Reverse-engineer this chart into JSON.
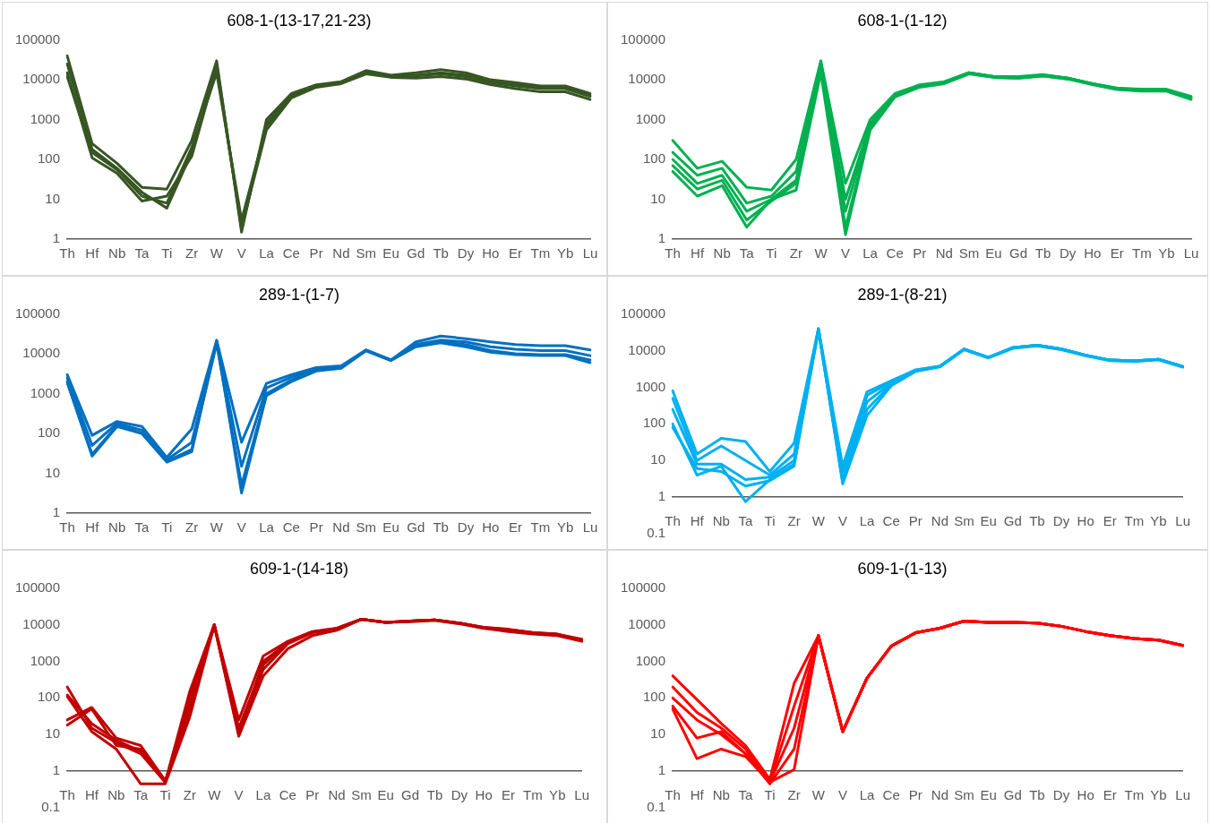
{
  "chart_data": [
    {
      "type": "line",
      "title": "608-1-(13-17,21-23)",
      "log": "y",
      "grid": false,
      "legend": false,
      "marker": "none",
      "line_style": "solid",
      "ylim": [
        1,
        100000
      ],
      "yticks": [
        1,
        10,
        100,
        1000,
        10000,
        100000
      ],
      "categories": [
        "Th",
        "Hf",
        "Nb",
        "Ta",
        "Ti",
        "Zr",
        "W",
        "V",
        "La",
        "Ce",
        "Pr",
        "Nd",
        "Sm",
        "Eu",
        "Gd",
        "Tb",
        "Dy",
        "Ho",
        "Er",
        "Tm",
        "Yb",
        "Lu"
      ],
      "series": [
        {
          "color": "#375623",
          "values": [
            40000,
            250,
            80,
            20,
            18,
            300,
            30000,
            1.5,
            1000,
            4500,
            7500,
            9000,
            17000,
            13000,
            15000,
            18000,
            15000,
            10000,
            8500,
            7000,
            7000,
            4500
          ]
        },
        {
          "color": "#375623",
          "values": [
            15000,
            110,
            45,
            9,
            12,
            120,
            20000,
            2,
            550,
            3500,
            6500,
            8000,
            14000,
            11500,
            11000,
            12000,
            10500,
            7500,
            6000,
            5000,
            5000,
            3200
          ]
        },
        {
          "color": "#375623",
          "values": [
            25000,
            180,
            60,
            15,
            6,
            150,
            25000,
            1.8,
            800,
            4000,
            7000,
            8500,
            15000,
            12000,
            12500,
            14000,
            12000,
            8500,
            7000,
            6000,
            6000,
            3800
          ]
        },
        {
          "color": "#375623",
          "values": [
            12000,
            150,
            55,
            12,
            8,
            200,
            15000,
            3,
            700,
            3800,
            7000,
            8500,
            16000,
            12500,
            13000,
            15000,
            13000,
            9000,
            7500,
            6500,
            6500,
            4000
          ]
        }
      ]
    },
    {
      "type": "line",
      "title": "608-1-(1-12)",
      "log": "y",
      "grid": false,
      "legend": false,
      "marker": "none",
      "line_style": "solid",
      "ylim": [
        1,
        100000
      ],
      "yticks": [
        1,
        10,
        100,
        1000,
        10000,
        100000
      ],
      "categories": [
        "Th",
        "Hf",
        "Nb",
        "Ta",
        "Ti",
        "Zr",
        "W",
        "V",
        "La",
        "Ce",
        "Pr",
        "Nd",
        "Sm",
        "Eu",
        "Gd",
        "Tb",
        "Dy",
        "Ho",
        "Er",
        "Tm",
        "Yb",
        "Lu"
      ],
      "series": [
        {
          "color": "#00b050",
          "values": [
            300,
            60,
            90,
            20,
            17,
            100,
            30000,
            25,
            1000,
            4500,
            7500,
            9000,
            15000,
            12000,
            12000,
            13500,
            11000,
            8000,
            6200,
            5800,
            5800,
            3800
          ]
        },
        {
          "color": "#00b050",
          "values": [
            150,
            40,
            60,
            8,
            12,
            50,
            25000,
            10,
            800,
            4200,
            7200,
            8700,
            15000,
            12000,
            11500,
            13000,
            11000,
            8000,
            6000,
            5500,
            5500,
            3600
          ]
        },
        {
          "color": "#00b050",
          "values": [
            100,
            25,
            40,
            5,
            10,
            30,
            20000,
            5,
            700,
            4000,
            7000,
            8500,
            15000,
            12000,
            11500,
            13000,
            11000,
            8000,
            6000,
            5500,
            5500,
            3500
          ]
        },
        {
          "color": "#00b050",
          "values": [
            70,
            18,
            30,
            3,
            9,
            25,
            28000,
            2,
            600,
            3900,
            6800,
            8300,
            14500,
            11500,
            11000,
            12500,
            10500,
            7700,
            5800,
            5300,
            5300,
            3300
          ]
        },
        {
          "color": "#00b050",
          "values": [
            50,
            12,
            22,
            2,
            10,
            17,
            15000,
            1.3,
            550,
            3700,
            6500,
            8000,
            14000,
            11500,
            11000,
            12500,
            10500,
            7500,
            5700,
            5200,
            5200,
            3200
          ]
        }
      ]
    },
    {
      "type": "line",
      "title": "289-1-(1-7)",
      "log": "y",
      "grid": false,
      "legend": false,
      "marker": "none",
      "line_style": "solid",
      "ylim": [
        1,
        100000
      ],
      "yticks": [
        1,
        10,
        100,
        1000,
        10000,
        100000
      ],
      "categories": [
        "Th",
        "Hf",
        "Nb",
        "Ta",
        "Ti",
        "Zr",
        "W",
        "V",
        "La",
        "Ce",
        "Pr",
        "Nd",
        "Sm",
        "Eu",
        "Gd",
        "Tb",
        "Dy",
        "Ho",
        "Er",
        "Tm",
        "Yb",
        "Lu"
      ],
      "series": [
        {
          "color": "#0070c0",
          "values": [
            3000,
            90,
            200,
            150,
            25,
            130,
            22000,
            60,
            1800,
            3000,
            4500,
            5000,
            12500,
            7000,
            20000,
            28000,
            24000,
            20000,
            17000,
            16000,
            16000,
            12500
          ]
        },
        {
          "color": "#0070c0",
          "values": [
            2500,
            50,
            180,
            120,
            22,
            60,
            20000,
            15,
            1400,
            2600,
            4200,
            4800,
            12500,
            7000,
            17000,
            22000,
            20000,
            15000,
            13000,
            12000,
            12000,
            9000
          ]
        },
        {
          "color": "#0070c0",
          "values": [
            2000,
            30,
            160,
            100,
            20,
            40,
            18000,
            5,
            1000,
            2200,
            4000,
            4500,
            12000,
            6800,
            16000,
            20000,
            17000,
            12000,
            10000,
            9500,
            9500,
            7000
          ]
        },
        {
          "color": "#0070c0",
          "values": [
            1900,
            27,
            150,
            100,
            19,
            35,
            21000,
            3.2,
            900,
            2000,
            3700,
            4300,
            12000,
            6800,
            15000,
            19000,
            15000,
            11000,
            9500,
            9000,
            9000,
            6000
          ]
        }
      ]
    },
    {
      "type": "line",
      "title": "289-1-(8-21)",
      "log": "y",
      "grid": false,
      "legend": false,
      "marker": "none",
      "line_style": "solid",
      "ylim": [
        0.1,
        100000
      ],
      "yticks": [
        0.1,
        1,
        10,
        100,
        1000,
        10000,
        100000
      ],
      "categories": [
        "Th",
        "Hf",
        "Nb",
        "Ta",
        "Ti",
        "Zr",
        "W",
        "V",
        "La",
        "Ce",
        "Pr",
        "Nd",
        "Sm",
        "Eu",
        "Gd",
        "Tb",
        "Dy",
        "Ho",
        "Er",
        "Tm",
        "Yb",
        "Lu"
      ],
      "series": [
        {
          "color": "#00b0f0",
          "values": [
            800,
            15,
            40,
            33,
            5,
            30,
            40000,
            7,
            750,
            1500,
            3000,
            3800,
            11000,
            6500,
            12000,
            14000,
            11000,
            7500,
            5500,
            5200,
            5800,
            3700
          ]
        },
        {
          "color": "#00b0f0",
          "values": [
            500,
            10,
            25,
            10,
            4,
            15,
            38000,
            5,
            600,
            1400,
            2900,
            3700,
            11000,
            6500,
            12000,
            14000,
            11000,
            7500,
            5500,
            5200,
            5800,
            3700
          ]
        },
        {
          "color": "#00b0f0",
          "values": [
            250,
            8,
            8,
            3,
            3.5,
            10,
            35000,
            3,
            400,
            1300,
            2800,
            3700,
            11000,
            6500,
            12000,
            14000,
            11000,
            7500,
            5500,
            5200,
            5800,
            3700
          ]
        },
        {
          "color": "#00b0f0",
          "values": [
            100,
            4,
            7,
            0.75,
            3,
            8,
            40000,
            2.3,
            170,
            1100,
            2700,
            3600,
            10500,
            6300,
            11500,
            13500,
            10500,
            7200,
            5300,
            5000,
            5600,
            3500
          ]
        },
        {
          "color": "#00b0f0",
          "values": [
            80,
            6,
            5,
            2,
            2.8,
            7,
            37000,
            2.5,
            250,
            1200,
            2800,
            3700,
            11000,
            6500,
            12000,
            14000,
            11000,
            7500,
            5500,
            5200,
            5800,
            3700
          ]
        }
      ]
    },
    {
      "type": "line",
      "title": "609-1-(14-18)",
      "log": "y",
      "grid": false,
      "legend": false,
      "marker": "none",
      "line_style": "solid",
      "ylim": [
        0.1,
        100000
      ],
      "yticks": [
        0.1,
        1,
        10,
        100,
        1000,
        10000,
        100000
      ],
      "categories": [
        "Th",
        "Hf",
        "Nb",
        "Ta",
        "Ti",
        "Zr",
        "W",
        "V",
        "La",
        "Ce",
        "Pr",
        "Nd",
        "Sm",
        "Eu",
        "Gd",
        "Tb",
        "Dy",
        "Ho",
        "Er",
        "Tm",
        "Yb",
        "Lu"
      ],
      "series": [
        {
          "color": "#c00000",
          "values": [
            200,
            15,
            6,
            3,
            0.5,
            150,
            10000,
            25,
            1400,
            3500,
            6500,
            8000,
            14000,
            11500,
            12500,
            13500,
            11000,
            8500,
            7500,
            6000,
            5500,
            4000
          ]
        },
        {
          "color": "#c00000",
          "values": [
            110,
            12,
            4,
            0.45,
            0.45,
            30,
            9500,
            9,
            400,
            2200,
            5000,
            7000,
            14000,
            11500,
            12000,
            13000,
            10500,
            8000,
            6500,
            5500,
            5000,
            3500
          ]
        },
        {
          "color": "#c00000",
          "values": [
            25,
            55,
            8,
            5,
            0.55,
            40,
            10000,
            12,
            600,
            3000,
            6000,
            7500,
            14000,
            11500,
            12500,
            13500,
            11000,
            8000,
            7000,
            5800,
            5300,
            3800
          ]
        },
        {
          "color": "#c00000",
          "values": [
            18,
            50,
            5,
            4,
            0.5,
            100,
            10000,
            10,
            1000,
            3200,
            6200,
            7800,
            14000,
            11500,
            12500,
            13500,
            11000,
            8200,
            7200,
            6000,
            5500,
            3700
          ]
        },
        {
          "color": "#c00000",
          "values": [
            120,
            20,
            7,
            3.5,
            0.5,
            60,
            10000,
            15,
            800,
            3300,
            6300,
            7900,
            14000,
            11500,
            12500,
            13500,
            11000,
            8300,
            7300,
            6000,
            5400,
            3800
          ]
        }
      ]
    },
    {
      "type": "line",
      "title": "609-1-(1-13)",
      "log": "y",
      "grid": false,
      "legend": false,
      "marker": "none",
      "line_style": "solid",
      "ylim": [
        0.1,
        100000
      ],
      "yticks": [
        0.1,
        1,
        10,
        100,
        1000,
        10000,
        100000
      ],
      "categories": [
        "Th",
        "Hf",
        "Nb",
        "Ta",
        "Ti",
        "Zr",
        "W",
        "V",
        "La",
        "Ce",
        "Pr",
        "Nd",
        "Sm",
        "Eu",
        "Gd",
        "Tb",
        "Dy",
        "Ho",
        "Er",
        "Tm",
        "Yb",
        "Lu"
      ],
      "series": [
        {
          "color": "#ff0000",
          "values": [
            400,
            90,
            20,
            5,
            0.6,
            250,
            5000,
            12,
            350,
            2600,
            6000,
            8000,
            12500,
            11500,
            11500,
            11000,
            9000,
            6500,
            5000,
            4200,
            3800,
            2700
          ]
        },
        {
          "color": "#ff0000",
          "values": [
            200,
            40,
            15,
            4,
            0.5,
            60,
            5000,
            12,
            350,
            2600,
            6000,
            8000,
            12500,
            11500,
            11500,
            11000,
            9000,
            6500,
            5000,
            4200,
            3800,
            2700
          ]
        },
        {
          "color": "#ff0000",
          "values": [
            100,
            25,
            10,
            3,
            0.5,
            15,
            5000,
            12,
            350,
            2600,
            6000,
            8000,
            12500,
            11500,
            11500,
            11000,
            9000,
            6500,
            5000,
            4200,
            3800,
            2700
          ]
        },
        {
          "color": "#ff0000",
          "values": [
            60,
            8,
            12,
            3,
            0.45,
            4,
            5000,
            12,
            350,
            2600,
            6000,
            8000,
            12500,
            11500,
            11500,
            11000,
            9000,
            6500,
            5000,
            4200,
            3800,
            2700
          ]
        },
        {
          "color": "#ff0000",
          "values": [
            50,
            2.2,
            4,
            2.5,
            0.5,
            1.1,
            5000,
            12,
            350,
            2600,
            6000,
            8000,
            12500,
            11500,
            11500,
            11000,
            9000,
            6500,
            5000,
            4200,
            3800,
            2700
          ]
        }
      ]
    }
  ]
}
